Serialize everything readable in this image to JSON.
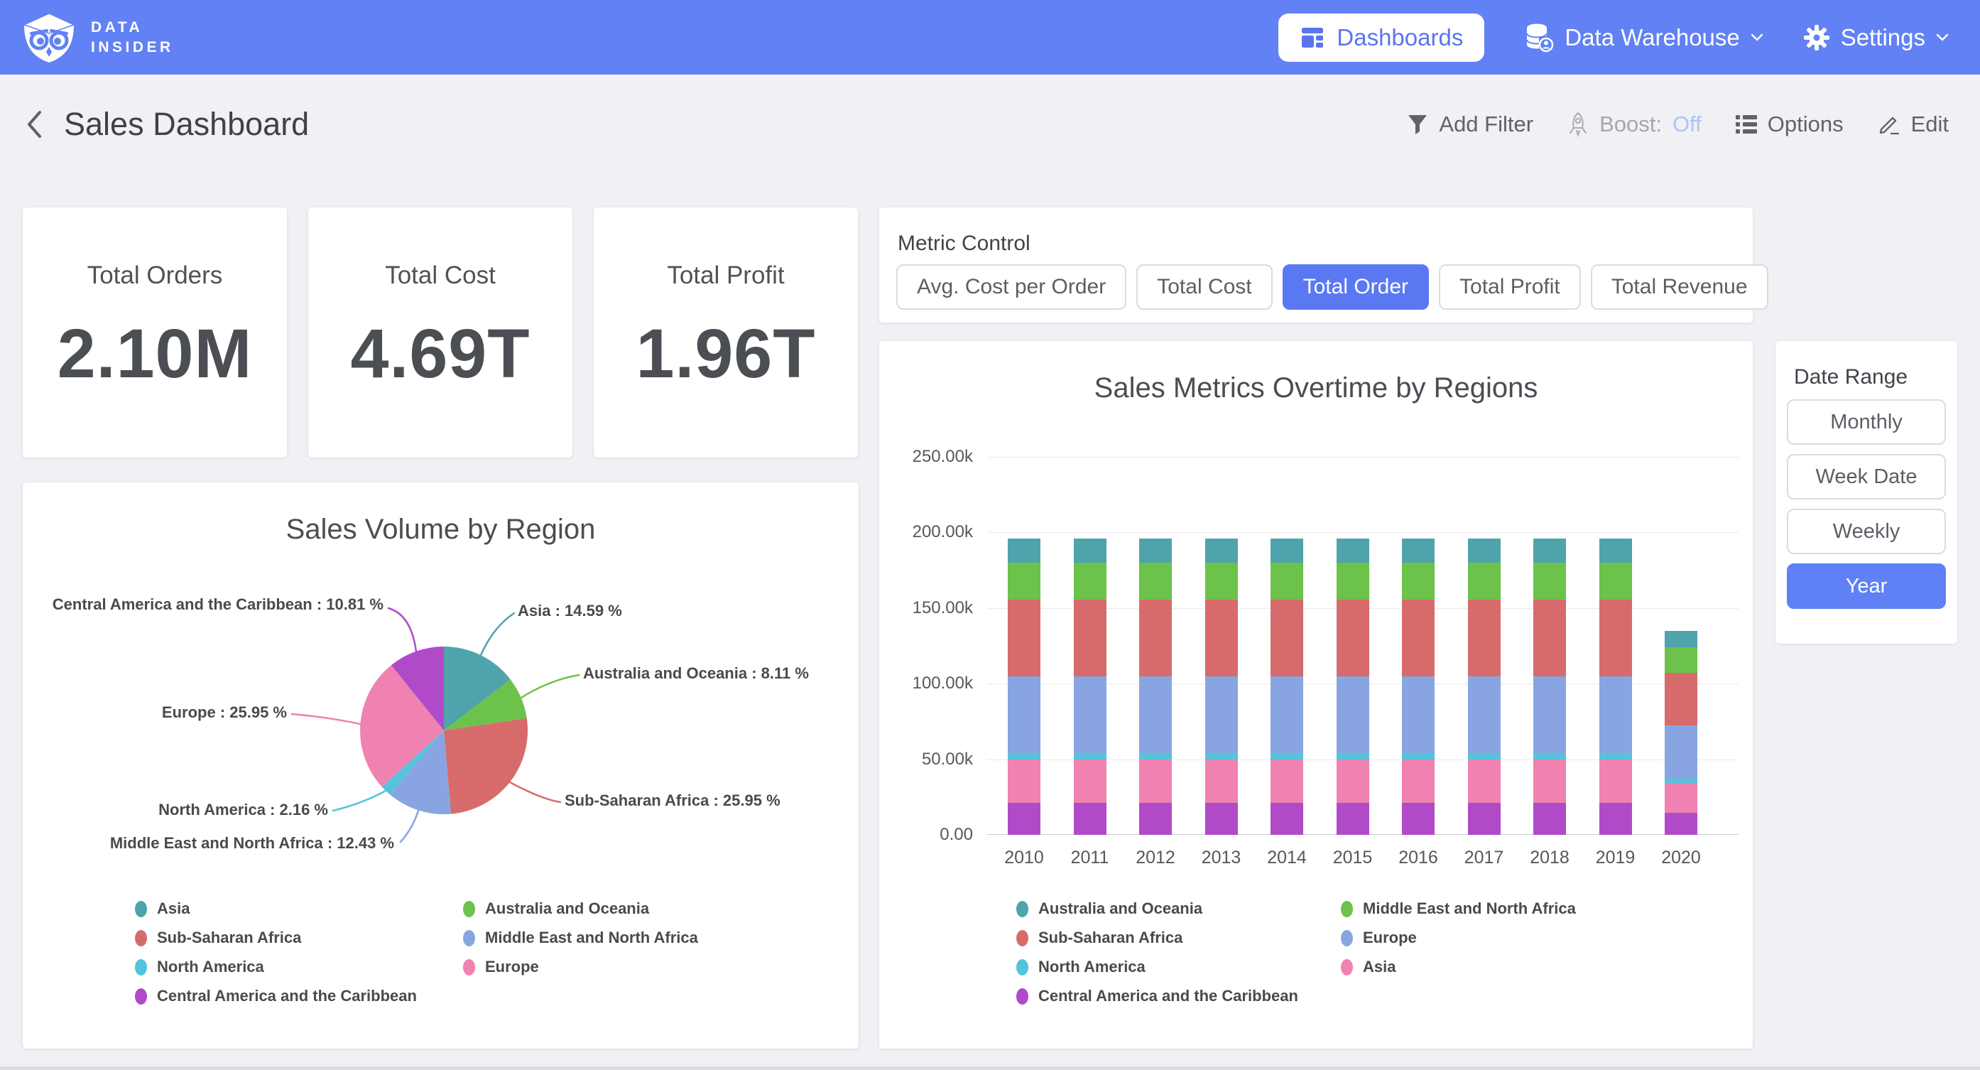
{
  "brand": {
    "line1": "DATA",
    "line2": "INSIDER"
  },
  "nav": {
    "dashboards": "Dashboards",
    "data_warehouse": "Data Warehouse",
    "settings": "Settings"
  },
  "header": {
    "title": "Sales Dashboard",
    "add_filter": "Add Filter",
    "boost_label": "Boost:",
    "boost_value": "Off",
    "options": "Options",
    "edit": "Edit"
  },
  "kpis": [
    {
      "label": "Total Orders",
      "value": "2.10M"
    },
    {
      "label": "Total Cost",
      "value": "4.69T"
    },
    {
      "label": "Total Profit",
      "value": "1.96T"
    }
  ],
  "metric_control": {
    "label": "Metric Control",
    "options": [
      "Avg. Cost per Order",
      "Total Cost",
      "Total Order",
      "Total Profit",
      "Total Revenue"
    ],
    "selected": "Total Order"
  },
  "date_range": {
    "label": "Date Range",
    "options": [
      "Monthly",
      "Week Date",
      "Weekly",
      "Year"
    ],
    "selected": "Year"
  },
  "colors": {
    "nav_accent": "#6181F5",
    "button_accent": "#5B78F3"
  },
  "chart_data": [
    {
      "type": "pie",
      "title": "Sales Volume by Region",
      "slices": [
        {
          "label": "Asia",
          "pct": 14.59,
          "color": "#4FA3AC"
        },
        {
          "label": "Australia and Oceania",
          "pct": 8.11,
          "color": "#6CC24A"
        },
        {
          "label": "Sub-Saharan Africa",
          "pct": 25.95,
          "color": "#D76B6B"
        },
        {
          "label": "Middle East and North Africa",
          "pct": 12.43,
          "color": "#88A5E2"
        },
        {
          "label": "North America",
          "pct": 2.16,
          "color": "#55C3DC"
        },
        {
          "label": "Europe",
          "pct": 25.95,
          "color": "#EF82B0"
        },
        {
          "label": "Central America and the Caribbean",
          "pct": 10.81,
          "color": "#B04AC8"
        }
      ],
      "legend_col1": [
        "Asia",
        "Sub-Saharan Africa",
        "North America",
        "Central America and the Caribbean"
      ],
      "legend_col2": [
        "Australia and Oceania",
        "Middle East and North Africa",
        "Europe"
      ]
    },
    {
      "type": "stacked-bar",
      "title": "Sales Metrics Overtime by Regions",
      "categories": [
        "2010",
        "2011",
        "2012",
        "2013",
        "2014",
        "2015",
        "2016",
        "2017",
        "2018",
        "2019",
        "2020"
      ],
      "ylim": [
        0,
        250000
      ],
      "yticks": [
        "0.00",
        "50.00k",
        "100.00k",
        "150.00k",
        "200.00k",
        "250.00k"
      ],
      "series": [
        {
          "name": "Central America and the Caribbean",
          "color": "#B04AC8",
          "values": [
            21190,
            21190,
            21190,
            21190,
            21190,
            21190,
            21190,
            21190,
            21190,
            21190,
            14600
          ]
        },
        {
          "name": "Asia",
          "color": "#EF82B0",
          "values": [
            28600,
            28600,
            28600,
            28600,
            28600,
            28600,
            28600,
            28600,
            28600,
            28600,
            19700
          ]
        },
        {
          "name": "North America",
          "color": "#55C3DC",
          "values": [
            4230,
            4230,
            4230,
            4230,
            4230,
            4230,
            4230,
            4230,
            4230,
            4230,
            2920
          ]
        },
        {
          "name": "Europe",
          "color": "#88A5E2",
          "values": [
            50860,
            50860,
            50860,
            50860,
            50860,
            50860,
            50860,
            50860,
            50860,
            50860,
            35000
          ]
        },
        {
          "name": "Sub-Saharan Africa",
          "color": "#D76B6B",
          "values": [
            50860,
            50860,
            50860,
            50860,
            50860,
            50860,
            50860,
            50860,
            50860,
            50860,
            35000
          ]
        },
        {
          "name": "Middle East and North Africa",
          "color": "#6CC24A",
          "values": [
            24360,
            24360,
            24360,
            24360,
            24360,
            24360,
            24360,
            24360,
            24360,
            24360,
            16800
          ]
        },
        {
          "name": "Australia and Oceania",
          "color": "#4FA3AC",
          "values": [
            15900,
            15900,
            15900,
            15900,
            15900,
            15900,
            15900,
            15900,
            15900,
            15900,
            10950
          ]
        }
      ],
      "legend_col1": [
        "Australia and Oceania",
        "Sub-Saharan Africa",
        "North America",
        "Central America and the Caribbean"
      ],
      "legend_col2": [
        "Middle East and North Africa",
        "Europe",
        "Asia"
      ]
    }
  ]
}
